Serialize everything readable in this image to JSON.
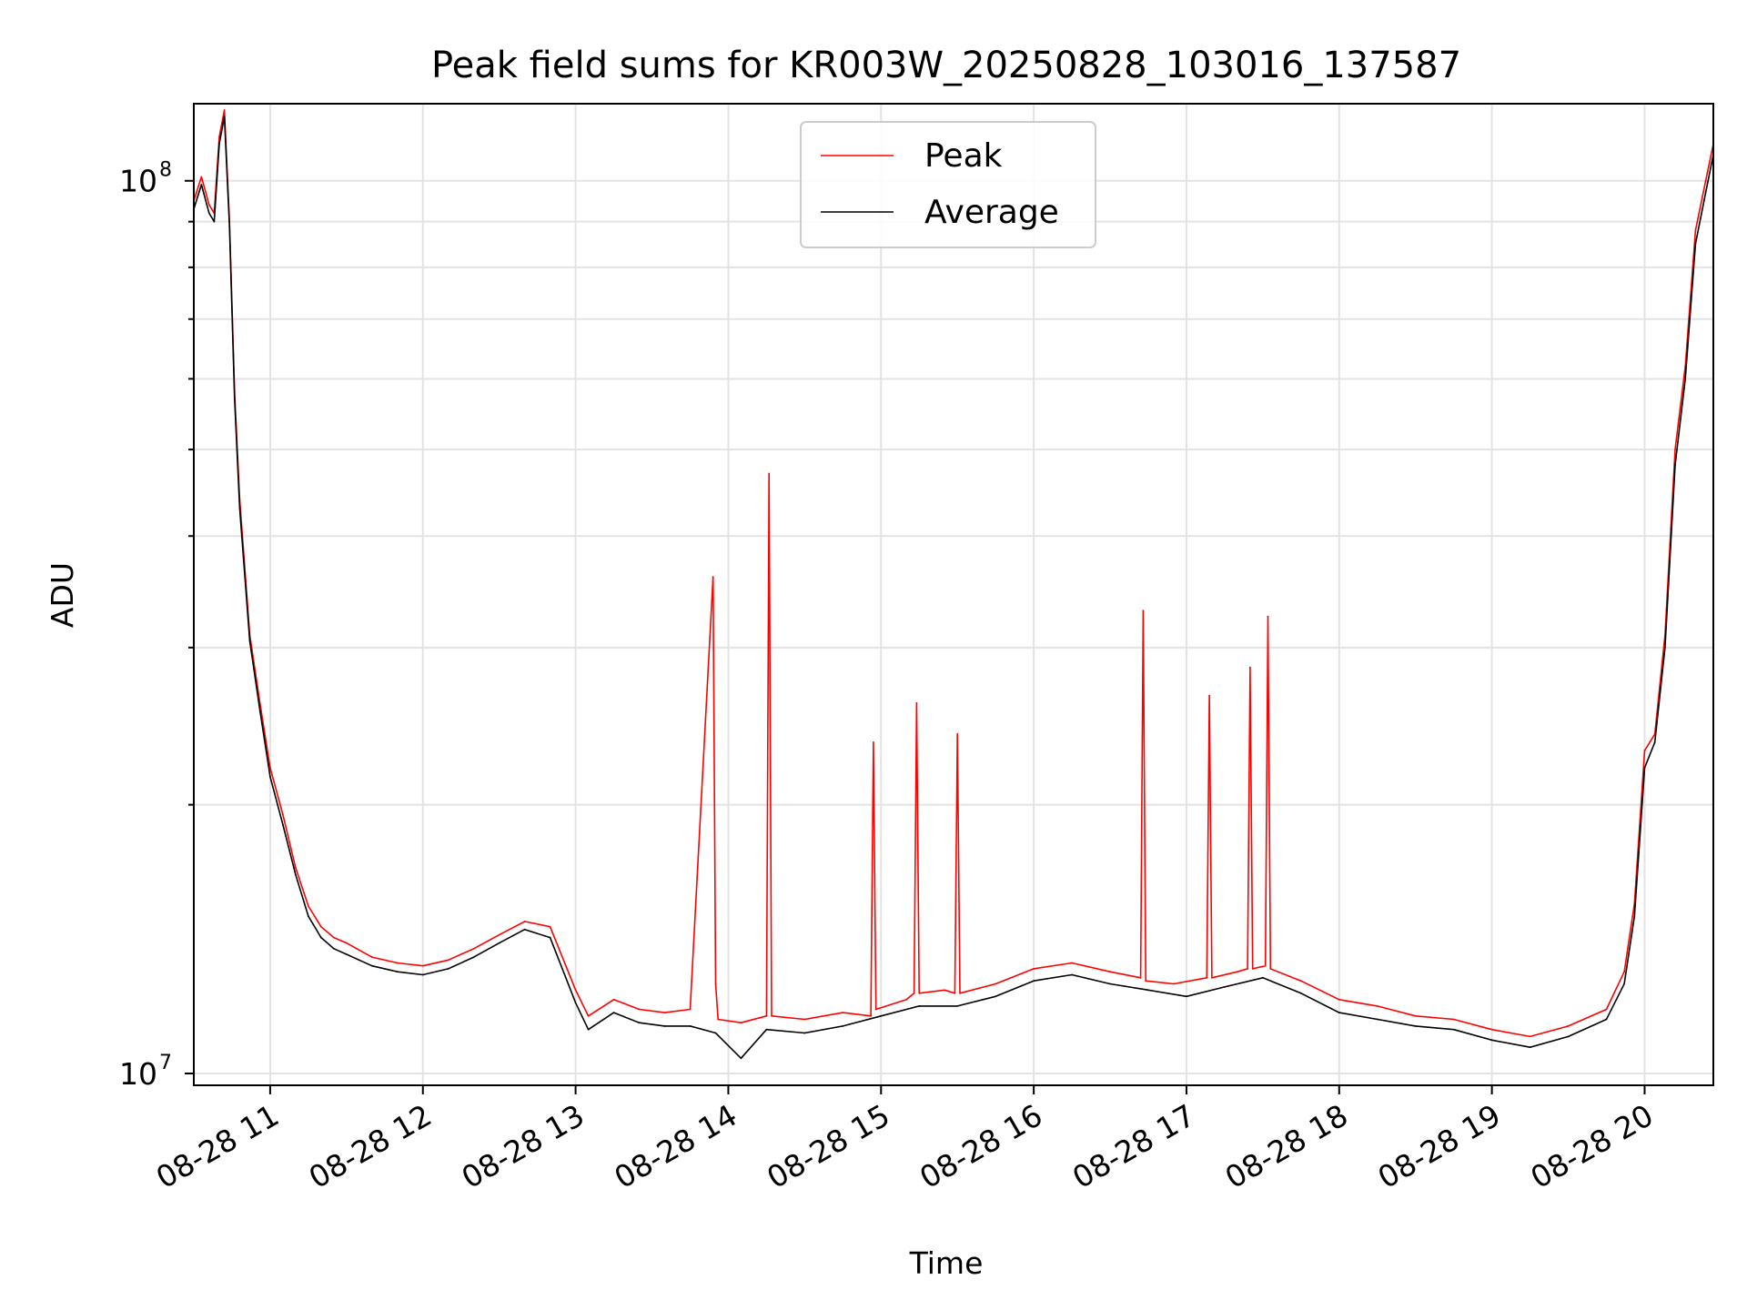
{
  "chart_data": {
    "type": "line",
    "title": "Peak field sums for KR003W_20250828_103016_137587",
    "xlabel": "Time",
    "ylabel": "ADU",
    "yscale": "log",
    "xlim": [
      "08-28 10:30",
      "08-28 20:27"
    ],
    "ylim": [
      9700000,
      122000000
    ],
    "grid": true,
    "legend_position": "upper-center",
    "x_tick_labels": [
      "08-28 11",
      "08-28 12",
      "08-28 13",
      "08-28 14",
      "08-28 15",
      "08-28 16",
      "08-28 17",
      "08-28 18",
      "08-28 19",
      "08-28 20"
    ],
    "y_tick_labels": [
      {
        "value": 10000000,
        "base": "10",
        "exp": "7"
      },
      {
        "value": 100000000,
        "base": "10",
        "exp": "8"
      }
    ],
    "series": [
      {
        "name": "Peak",
        "color": "#ff0000",
        "x": [
          "08-28 10:30",
          "08-28 10:33",
          "08-28 10:36",
          "08-28 10:38",
          "08-28 10:40",
          "08-28 10:42",
          "08-28 10:44",
          "08-28 10:46",
          "08-28 10:48",
          "08-28 10:52",
          "08-28 10:56",
          "08-28 11:00",
          "08-28 11:05",
          "08-28 11:10",
          "08-28 11:15",
          "08-28 11:20",
          "08-28 11:25",
          "08-28 11:30",
          "08-28 11:40",
          "08-28 11:50",
          "08-28 12:00",
          "08-28 12:10",
          "08-28 12:20",
          "08-28 12:30",
          "08-28 12:40",
          "08-28 12:50",
          "08-28 13:00",
          "08-28 13:05",
          "08-28 13:15",
          "08-28 13:25",
          "08-28 13:35",
          "08-28 13:45",
          "08-28 13:54",
          "08-28 13:55",
          "08-28 13:56",
          "08-28 14:05",
          "08-28 14:15",
          "08-28 14:16",
          "08-28 14:17",
          "08-28 14:30",
          "08-28 14:45",
          "08-28 14:56",
          "08-28 14:57",
          "08-28 14:58",
          "08-28 15:10",
          "08-28 15:13",
          "08-28 15:14",
          "08-28 15:15",
          "08-28 15:25",
          "08-28 15:29",
          "08-28 15:30",
          "08-28 15:31",
          "08-28 15:45",
          "08-28 16:00",
          "08-28 16:15",
          "08-28 16:30",
          "08-28 16:42",
          "08-28 16:43",
          "08-28 16:44",
          "08-28 16:55",
          "08-28 17:08",
          "08-28 17:09",
          "08-28 17:10",
          "08-28 17:20",
          "08-28 17:24",
          "08-28 17:25",
          "08-28 17:26",
          "08-28 17:31",
          "08-28 17:32",
          "08-28 17:33",
          "08-28 17:45",
          "08-28 18:00",
          "08-28 18:15",
          "08-28 18:30",
          "08-28 18:45",
          "08-28 19:00",
          "08-28 19:15",
          "08-28 19:30",
          "08-28 19:45",
          "08-28 19:52",
          "08-28 19:56",
          "08-28 20:00",
          "08-28 20:04",
          "08-28 20:08",
          "08-28 20:12",
          "08-28 20:16",
          "08-28 20:20",
          "08-28 20:24",
          "08-28 20:27"
        ],
        "values": [
          95000000,
          101000000,
          94000000,
          92000000,
          112000000,
          120000000,
          90000000,
          58000000,
          44000000,
          31000000,
          26000000,
          22000000,
          19500000,
          17000000,
          15400000,
          14600000,
          14200000,
          14000000,
          13500000,
          13300000,
          13200000,
          13400000,
          13800000,
          14300000,
          14800000,
          14600000,
          12400000,
          11600000,
          12100000,
          11800000,
          11700000,
          11800000,
          36000000,
          12600000,
          11500000,
          11400000,
          11600000,
          47000000,
          11600000,
          11500000,
          11700000,
          11600000,
          23500000,
          11800000,
          12100000,
          12300000,
          26000000,
          12300000,
          12400000,
          12300000,
          24000000,
          12300000,
          12600000,
          13100000,
          13300000,
          13000000,
          12800000,
          33000000,
          12700000,
          12600000,
          12800000,
          26500000,
          12800000,
          13000000,
          13100000,
          28500000,
          13100000,
          13200000,
          32500000,
          13100000,
          12700000,
          12100000,
          11900000,
          11600000,
          11500000,
          11200000,
          11000000,
          11300000,
          11800000,
          13000000,
          15500000,
          23000000,
          24000000,
          31000000,
          50000000,
          62000000,
          88000000,
          100000000,
          110000000
        ]
      },
      {
        "name": "Average",
        "color": "#000000",
        "x": [
          "08-28 10:30",
          "08-28 10:33",
          "08-28 10:36",
          "08-28 10:38",
          "08-28 10:40",
          "08-28 10:42",
          "08-28 10:44",
          "08-28 10:46",
          "08-28 10:48",
          "08-28 10:52",
          "08-28 10:56",
          "08-28 11:00",
          "08-28 11:05",
          "08-28 11:10",
          "08-28 11:15",
          "08-28 11:20",
          "08-28 11:25",
          "08-28 11:30",
          "08-28 11:40",
          "08-28 11:50",
          "08-28 12:00",
          "08-28 12:10",
          "08-28 12:20",
          "08-28 12:30",
          "08-28 12:40",
          "08-28 12:50",
          "08-28 13:00",
          "08-28 13:05",
          "08-28 13:15",
          "08-28 13:25",
          "08-28 13:35",
          "08-28 13:45",
          "08-28 13:55",
          "08-28 14:05",
          "08-28 14:15",
          "08-28 14:30",
          "08-28 14:45",
          "08-28 15:00",
          "08-28 15:15",
          "08-28 15:30",
          "08-28 15:45",
          "08-28 16:00",
          "08-28 16:15",
          "08-28 16:30",
          "08-28 16:45",
          "08-28 17:00",
          "08-28 17:15",
          "08-28 17:30",
          "08-28 17:45",
          "08-28 18:00",
          "08-28 18:15",
          "08-28 18:30",
          "08-28 18:45",
          "08-28 19:00",
          "08-28 19:15",
          "08-28 19:30",
          "08-28 19:45",
          "08-28 19:52",
          "08-28 19:56",
          "08-28 20:00",
          "08-28 20:04",
          "08-28 20:08",
          "08-28 20:12",
          "08-28 20:16",
          "08-28 20:20",
          "08-28 20:24",
          "08-28 20:27"
        ],
        "values": [
          93000000,
          99000000,
          92000000,
          90000000,
          110000000,
          118000000,
          89000000,
          57000000,
          43000000,
          30500000,
          25500000,
          21500000,
          19000000,
          16700000,
          15000000,
          14200000,
          13800000,
          13600000,
          13200000,
          13000000,
          12900000,
          13100000,
          13500000,
          14000000,
          14500000,
          14200000,
          12000000,
          11200000,
          11700000,
          11400000,
          11300000,
          11300000,
          11100000,
          10400000,
          11200000,
          11100000,
          11300000,
          11600000,
          11900000,
          11900000,
          12200000,
          12700000,
          12900000,
          12600000,
          12400000,
          12200000,
          12500000,
          12800000,
          12300000,
          11700000,
          11500000,
          11300000,
          11200000,
          10900000,
          10700000,
          11000000,
          11500000,
          12600000,
          15000000,
          22000000,
          23500000,
          30000000,
          48000000,
          60000000,
          85000000,
          97000000,
          107000000
        ]
      }
    ]
  }
}
